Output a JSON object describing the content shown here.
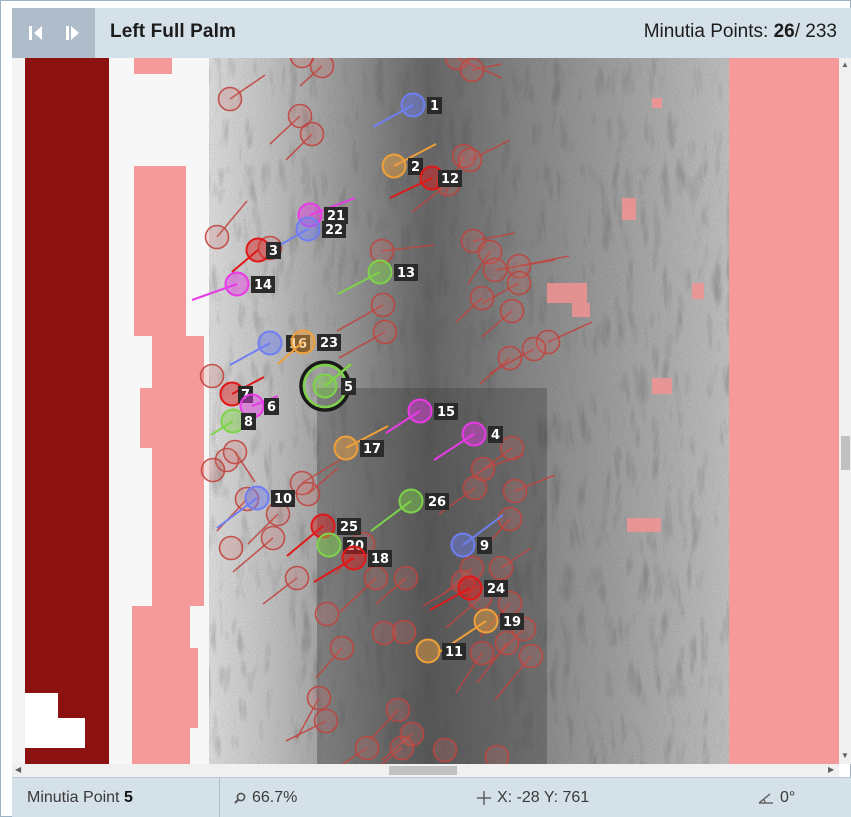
{
  "header": {
    "title": "Left Full Palm",
    "count_label": "Minutia Points: ",
    "count_selected": "26",
    "count_total": "/ 233",
    "prev_icon": "skip-previous-icon",
    "next_icon": "skip-next-icon"
  },
  "status": {
    "point_label": "Minutia Point ",
    "point_value": "5",
    "zoom": "66.7%",
    "coords": "X: -28 Y: 761",
    "angle": "0°",
    "zoom_icon": "magnifier-icon",
    "coords_icon": "crosshair-icon",
    "angle_icon": "angle-icon"
  },
  "colors": {
    "blue": "#6f7ff2",
    "orange": "#f0a03a",
    "red": "#e01818",
    "magenta": "#e83ae6",
    "green": "#7ed34a",
    "faded": "#c0443e"
  },
  "labeled_points": [
    {
      "n": "1",
      "c": "blue"
    },
    {
      "n": "2",
      "c": "orange"
    },
    {
      "n": "12",
      "c": "red"
    },
    {
      "n": "21",
      "c": "magenta"
    },
    {
      "n": "22",
      "c": "blue"
    },
    {
      "n": "3",
      "c": "red"
    },
    {
      "n": "13",
      "c": "green"
    },
    {
      "n": "14",
      "c": "magenta"
    },
    {
      "n": "16",
      "c": "blue"
    },
    {
      "n": "23",
      "c": "orange"
    },
    {
      "n": "5",
      "c": "green"
    },
    {
      "n": "7",
      "c": "red"
    },
    {
      "n": "6",
      "c": "magenta"
    },
    {
      "n": "8",
      "c": "green"
    },
    {
      "n": "15",
      "c": "magenta"
    },
    {
      "n": "4",
      "c": "magenta"
    },
    {
      "n": "17",
      "c": "orange"
    },
    {
      "n": "10",
      "c": "blue"
    },
    {
      "n": "26",
      "c": "green"
    },
    {
      "n": "25",
      "c": "red"
    },
    {
      "n": "20",
      "c": "green"
    },
    {
      "n": "18",
      "c": "red"
    },
    {
      "n": "9",
      "c": "blue"
    },
    {
      "n": "24",
      "c": "red"
    },
    {
      "n": "19",
      "c": "orange"
    },
    {
      "n": "11",
      "c": "orange"
    }
  ],
  "selected_point": "5"
}
